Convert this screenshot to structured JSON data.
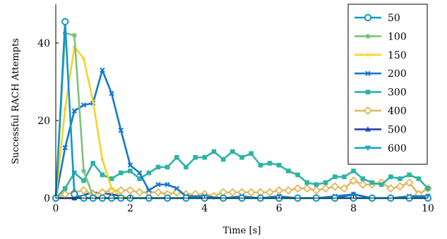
{
  "chart_data": {
    "type": "line",
    "xlabel": "Time [s]",
    "ylabel": "Successful RACH Attempts",
    "xlim": [
      0,
      10
    ],
    "ylim": [
      0,
      50
    ],
    "xticks": [
      0,
      2,
      4,
      6,
      8,
      10
    ],
    "yticks": [
      0,
      20,
      40
    ],
    "x_tick_labels": [
      "0",
      "2",
      "4",
      "6",
      "8",
      "10"
    ],
    "y_tick_labels": [
      "0",
      "20",
      "40"
    ],
    "grid": false,
    "legend_position": "top-right",
    "series": [
      {
        "name": "50",
        "color": "#1297c9",
        "marker": "open-circle",
        "x": [
          0,
          0.25,
          0.5,
          0.75,
          1,
          1.25,
          1.5,
          1.75,
          2,
          2.5,
          3,
          3.5,
          4,
          4.5,
          5,
          5.5,
          6,
          6.5,
          7,
          7.5,
          8,
          8.5,
          9,
          9.5,
          10
        ],
        "y": [
          0,
          45.5,
          1,
          0,
          0,
          0,
          0,
          0,
          0,
          0,
          0,
          0,
          0,
          0,
          0,
          0,
          0,
          0,
          0,
          0,
          0,
          0,
          0,
          0,
          0
        ]
      },
      {
        "name": "100",
        "color": "#7dc27a",
        "marker": "dot",
        "x": [
          0,
          0.25,
          0.5,
          0.75,
          1,
          1.25,
          1.5,
          1.75,
          2,
          2.5,
          3,
          3.5,
          4,
          4.5,
          5,
          5.5,
          6,
          6.5,
          7,
          7.5,
          8,
          8.5,
          9,
          9.5,
          10
        ],
        "y": [
          0,
          42.5,
          42,
          7,
          0.5,
          0,
          0,
          0,
          0,
          0,
          0,
          0,
          0,
          0,
          0,
          0,
          0,
          0,
          0,
          0,
          0,
          0,
          0,
          0,
          0
        ]
      },
      {
        "name": "150",
        "color": "#f5d328",
        "marker": "star",
        "x": [
          0,
          0.25,
          0.5,
          0.75,
          1,
          1.25,
          1.5,
          1.75,
          2,
          2.5,
          3,
          3.5,
          4,
          4.5,
          5,
          5.5,
          6,
          6.5,
          7,
          7.5,
          8,
          8.5,
          9,
          9.5,
          10
        ],
        "y": [
          0,
          23,
          39,
          36,
          25,
          10,
          2.5,
          0.5,
          0,
          0,
          0,
          0,
          0,
          0,
          0,
          0,
          0,
          0,
          0,
          0,
          0,
          0,
          0,
          0,
          0
        ]
      },
      {
        "name": "200",
        "color": "#1577d3",
        "marker": "x",
        "x": [
          0,
          0.25,
          0.5,
          0.75,
          1,
          1.25,
          1.5,
          1.75,
          2,
          2.25,
          2.5,
          2.75,
          3,
          3.25,
          3.5,
          4,
          4.5,
          5,
          5.5,
          6,
          6.5,
          7,
          7.5,
          8,
          8.5,
          9,
          9.5,
          10
        ],
        "y": [
          0,
          13,
          22.5,
          24,
          24.5,
          33,
          27,
          17.5,
          8.5,
          6.5,
          2,
          3.5,
          3.5,
          2.5,
          0.5,
          0.5,
          0,
          0.5,
          0,
          0.5,
          0,
          0,
          0.5,
          1,
          0,
          0,
          0.5,
          0.5
        ]
      },
      {
        "name": "300",
        "color": "#2eb4a2",
        "marker": "square",
        "x": [
          0,
          0.25,
          0.5,
          0.75,
          1,
          1.25,
          1.5,
          1.75,
          2,
          2.25,
          2.5,
          2.75,
          3,
          3.25,
          3.5,
          3.75,
          4,
          4.25,
          4.5,
          4.75,
          5,
          5.25,
          5.5,
          5.75,
          6,
          6.25,
          6.5,
          6.75,
          7,
          7.25,
          7.5,
          7.75,
          8,
          8.25,
          8.5,
          8.75,
          9,
          9.25,
          9.5,
          9.75,
          10
        ],
        "y": [
          0,
          2.5,
          6.5,
          4.5,
          9,
          6,
          5,
          6.5,
          7,
          5,
          6.5,
          8,
          8,
          10.5,
          8,
          10.5,
          10.5,
          12,
          10,
          12,
          10.5,
          11.5,
          8.5,
          9,
          8.5,
          7,
          6,
          4,
          3.5,
          4,
          5.5,
          5.5,
          7,
          5,
          4,
          3.5,
          5.5,
          5,
          6,
          5,
          2.5
        ]
      },
      {
        "name": "400",
        "color": "#e2b65a",
        "marker": "open-diamond",
        "x": [
          0,
          0.25,
          0.5,
          0.75,
          1,
          1.25,
          1.5,
          1.75,
          2,
          2.25,
          2.5,
          2.75,
          3,
          3.25,
          3.5,
          3.75,
          4,
          4.25,
          4.5,
          4.75,
          5,
          5.25,
          5.5,
          5.75,
          6,
          6.25,
          6.5,
          6.75,
          7,
          7.25,
          7.5,
          7.75,
          8,
          8.25,
          8.5,
          8.75,
          9,
          9.25,
          9.5,
          9.75,
          10
        ],
        "y": [
          0,
          1,
          1.5,
          2,
          1,
          1.5,
          2,
          2,
          2,
          1.5,
          1.5,
          1.5,
          1,
          1.5,
          1,
          1,
          1,
          0.5,
          1.5,
          1.5,
          1.5,
          1.5,
          1.5,
          1.5,
          2,
          2,
          2.5,
          2.5,
          2,
          2.5,
          3,
          2.5,
          4.5,
          3.5,
          3.5,
          4,
          2.5,
          3,
          4,
          1,
          2.5
        ]
      },
      {
        "name": "500",
        "color": "#2747b0",
        "marker": "triangle",
        "x": [
          0,
          0.5,
          1,
          1.5,
          2,
          2.5,
          3,
          3.5,
          4,
          4.5,
          5,
          5.5,
          6,
          6.5,
          7,
          7.5,
          8,
          8.5,
          9,
          9.5,
          10
        ],
        "y": [
          0,
          0,
          1.5,
          1,
          0,
          0,
          0,
          0,
          0,
          0,
          0,
          0,
          0,
          0,
          0,
          0,
          1,
          0,
          0,
          0,
          0.5
        ]
      },
      {
        "name": "600",
        "color": "#1ba6c9",
        "marker": "down-triangle",
        "x": [
          0,
          0.5,
          1,
          1.5,
          2,
          2.5,
          3,
          3.5,
          4,
          4.5,
          5,
          5.5,
          6,
          6.5,
          7,
          7.5,
          8,
          8.5,
          9,
          9.5,
          10
        ],
        "y": [
          0,
          0,
          0,
          0,
          0,
          0,
          0,
          0,
          0,
          0,
          0,
          0,
          0,
          0,
          0,
          0,
          0,
          0,
          0,
          0,
          0
        ]
      }
    ]
  }
}
